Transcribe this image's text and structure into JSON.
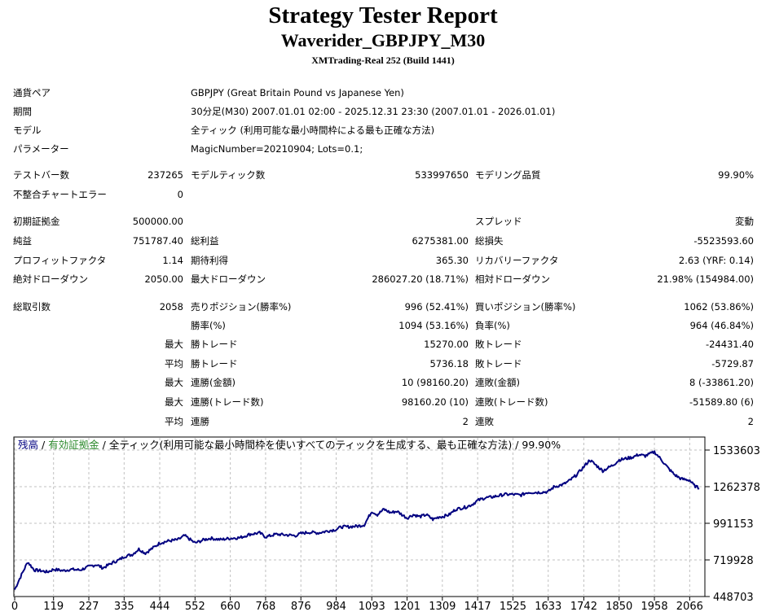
{
  "report": {
    "title": "Strategy Tester Report",
    "subtitle": "Waverider_GBPJPY_M30",
    "server": "XMTrading-Real 252 (Build 1441)"
  },
  "info": {
    "symbol_label": "通貨ペア",
    "symbol_value": "GBPJPY (Great Britain Pound vs Japanese Yen)",
    "period_label": "期間",
    "period_value": "30分足(M30) 2007.01.01 02:00 - 2025.12.31 23:30 (2007.01.01 - 2026.01.01)",
    "model_label": "モデル",
    "model_value": "全ティック (利用可能な最小時間枠による最も正確な方法)",
    "params_label": "パラメーター",
    "params_value": "MagicNumber=20210904; Lots=0.1;"
  },
  "stats": {
    "bars_label": "テストバー数",
    "bars_value": "237265",
    "ticks_label": "モデルティック数",
    "ticks_value": "533997650",
    "quality_label": "モデリング品質",
    "quality_value": "99.90%",
    "mismatch_label": "不整合チャートエラー",
    "mismatch_value": "0",
    "deposit_label": "初期証拠金",
    "deposit_value": "500000.00",
    "spread_label": "スプレッド",
    "spread_value": "変動",
    "net_label": "純益",
    "net_value": "751787.40",
    "gross_profit_label": "総利益",
    "gross_profit_value": "6275381.00",
    "gross_loss_label": "総損失",
    "gross_loss_value": "-5523593.60",
    "pf_label": "プロフィットファクタ",
    "pf_value": "1.14",
    "expected_label": "期待利得",
    "expected_value": "365.30",
    "recovery_label": "リカバリーファクタ",
    "recovery_value": "2.63 (YRF: 0.14)",
    "abs_dd_label": "絶対ドローダウン",
    "abs_dd_value": "2050.00",
    "max_dd_label": "最大ドローダウン",
    "max_dd_value": "286027.20 (18.71%)",
    "rel_dd_label": "相対ドローダウン",
    "rel_dd_value": "21.98% (154984.00)",
    "trades_label": "総取引数",
    "trades_value": "2058",
    "short_label": "売りポジション(勝率%)",
    "short_value": "996 (52.41%)",
    "long_label": "買いポジション(勝率%)",
    "long_value": "1062 (53.86%)",
    "win_label": "勝率(%)",
    "win_value": "1094 (53.16%)",
    "loss_label": "負率(%)",
    "loss_value": "964 (46.84%)",
    "max_prefix": "最大",
    "avg_prefix": "平均",
    "largest_win_label": "勝トレード",
    "largest_win_value": "15270.00",
    "largest_loss_label": "敗トレード",
    "largest_loss_value": "-24431.40",
    "avg_win_label": "勝トレード",
    "avg_win_value": "5736.18",
    "avg_loss_label": "敗トレード",
    "avg_loss_value": "-5729.87",
    "max_cons_wins_label": "連勝(金額)",
    "max_cons_wins_value": "10 (98160.20)",
    "max_cons_losses_label": "連敗(金額)",
    "max_cons_losses_value": "8 (-33861.20)",
    "max_cons_profit_label": "連勝(トレード数)",
    "max_cons_profit_value": "98160.20 (10)",
    "max_cons_loss_label": "連敗(トレード数)",
    "max_cons_loss_value": "-51589.80 (6)",
    "avg_cons_wins_label": "連勝",
    "avg_cons_wins_value": "2",
    "avg_cons_losses_label": "連敗",
    "avg_cons_losses_value": "2"
  },
  "legend": {
    "balance": "残高",
    "sep1": " / ",
    "equity": "有効証拠金",
    "sep2": " / ",
    "rest": "全ティック(利用可能な最小時間枠を使いすべてのティックを生成する、最も正確な方法) / 99.90%"
  },
  "colors": {
    "line": "#000080",
    "equity": "#2e8b2e",
    "grid": "#c0c0c0"
  },
  "chart_data": {
    "type": "line",
    "x_ticks": [
      "0",
      "119",
      "227",
      "335",
      "444",
      "552",
      "660",
      "768",
      "876",
      "984",
      "1093",
      "1201",
      "1309",
      "1417",
      "1525",
      "1633",
      "1742",
      "1850",
      "1958",
      "2066"
    ],
    "y_ticks": [
      "1533603",
      "1262378",
      "991153",
      "719928",
      "448703"
    ],
    "xlim": [
      0,
      2110
    ],
    "ylim": [
      448703,
      1533603
    ],
    "series": [
      {
        "x": [
          0,
          15,
          40,
          60,
          80,
          100,
          119,
          150,
          170,
          200,
          227,
          250,
          270,
          300,
          320,
          335,
          360,
          380,
          400,
          430,
          444,
          470,
          500,
          520,
          552,
          580,
          600,
          630,
          660,
          690,
          720,
          750,
          768,
          800,
          830,
          860,
          876,
          900,
          930,
          960,
          984,
          1000,
          1020,
          1050,
          1070,
          1093,
          1110,
          1130,
          1150,
          1170,
          1201,
          1220,
          1240,
          1260,
          1280,
          1300,
          1309,
          1330,
          1350,
          1380,
          1400,
          1417,
          1440,
          1460,
          1480,
          1500,
          1525,
          1550,
          1570,
          1600,
          1633,
          1650,
          1680,
          1700,
          1720,
          1742,
          1760,
          1780,
          1800,
          1830,
          1850,
          1870,
          1890,
          1910,
          1930,
          1958,
          1980,
          2000,
          2020,
          2040,
          2066,
          2080,
          2095
        ],
        "y": [
          500000,
          580000,
          705000,
          645000,
          640000,
          630000,
          650000,
          640000,
          650000,
          645000,
          670000,
          685000,
          660000,
          700000,
          720000,
          745000,
          760000,
          800000,
          770000,
          820000,
          845000,
          860000,
          870000,
          900000,
          845000,
          870000,
          880000,
          870000,
          880000,
          885000,
          910000,
          920000,
          890000,
          910000,
          905000,
          900000,
          915000,
          925000,
          920000,
          935000,
          945000,
          965000,
          965000,
          970000,
          980000,
          1080000,
          1055000,
          1095000,
          1070000,
          1080000,
          1030000,
          1055000,
          1040000,
          1055000,
          1020000,
          1040000,
          1040000,
          1055000,
          1095000,
          1110000,
          1130000,
          1160000,
          1180000,
          1185000,
          1195000,
          1205000,
          1205000,
          1200000,
          1220000,
          1220000,
          1225000,
          1260000,
          1280000,
          1310000,
          1350000,
          1410000,
          1460000,
          1420000,
          1380000,
          1420000,
          1460000,
          1470000,
          1480000,
          1500000,
          1490000,
          1520000,
          1460000,
          1400000,
          1350000,
          1320000,
          1310000,
          1270000,
          1250000
        ]
      }
    ]
  }
}
